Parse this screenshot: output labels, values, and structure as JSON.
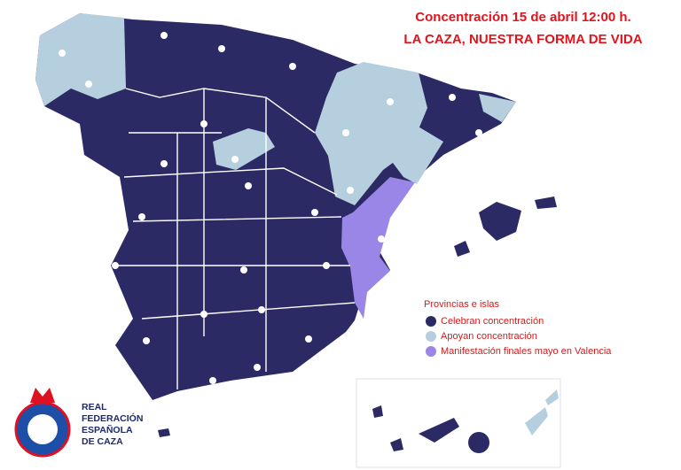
{
  "title": {
    "line1": "Concentración 15 de abril 12:00 h.",
    "line2": "LA CAZA, NUESTRA FORMA DE VIDA"
  },
  "legend": {
    "title": "Provincias e islas",
    "items": [
      {
        "label": "Celebran concentración",
        "color": "#2b2a64"
      },
      {
        "label": "Apoyan concentración",
        "color": "#b6cfdf"
      },
      {
        "label": "Manifestación finales mayo en Valencia",
        "color": "#9a86e6"
      }
    ]
  },
  "logo": {
    "lines": [
      "REAL",
      "FEDERACIÓN",
      "ESPAÑOLA",
      "DE CAZA"
    ]
  }
}
